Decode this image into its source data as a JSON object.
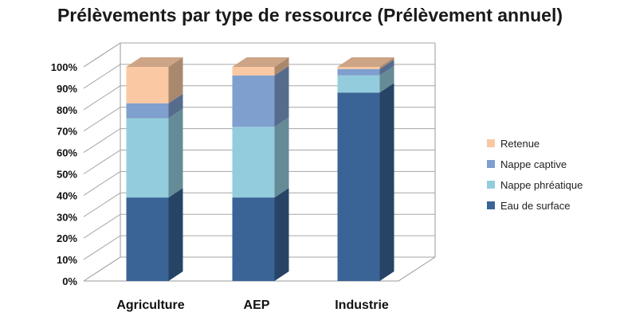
{
  "chart_data": {
    "type": "bar",
    "stacked": true,
    "percent": true,
    "title": "Prélèvements par type de ressource (Prélèvement annuel)",
    "categories": [
      "Agriculture",
      "AEP",
      "Industrie"
    ],
    "series": [
      {
        "name": "Eau de surface",
        "color": "#3A6496",
        "values": [
          39,
          39,
          88
        ]
      },
      {
        "name": "Nappe phréatique",
        "color": "#93CDDD",
        "values": [
          37,
          33,
          8
        ]
      },
      {
        "name": "Nappe captive",
        "color": "#7F9FCE",
        "values": [
          7,
          24,
          3
        ]
      },
      {
        "name": "Retenue",
        "color": "#FAC8A2",
        "values": [
          17,
          4,
          1
        ]
      }
    ],
    "ylim": [
      0,
      100
    ],
    "yticks": [
      "0%",
      "10%",
      "20%",
      "30%",
      "40%",
      "50%",
      "60%",
      "70%",
      "80%",
      "90%",
      "100%"
    ],
    "grid": true,
    "legend": "right"
  }
}
